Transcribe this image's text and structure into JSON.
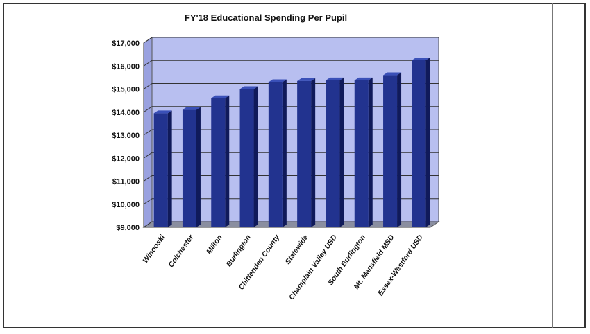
{
  "chart_data": {
    "type": "bar",
    "title": "FY'18 Educational Spending Per Pupil",
    "categories": [
      "Winooski",
      "Colchester",
      "Milton",
      "Burlington",
      "Chittenden County",
      "Statewide",
      "Champlain Valley USD",
      "South Burlington",
      "Mt. Mansfield MSD",
      "Essex-Westford USD"
    ],
    "series": [
      {
        "values": [
          13950,
          14100,
          14600,
          15000,
          15300,
          15350,
          15380,
          15380,
          15600,
          16250
        ]
      }
    ],
    "ylim": [
      9000,
      17000
    ],
    "yticks": [
      9000,
      10000,
      11000,
      12000,
      13000,
      14000,
      15000,
      16000,
      17000
    ],
    "ytick_labels": [
      "$9,000",
      "$10,000",
      "$11,000",
      "$12,000",
      "$13,000",
      "$14,000",
      "$15,000",
      "$16,000",
      "$17,000"
    ],
    "xlabel": "",
    "ylabel": "",
    "grid": true,
    "colors": {
      "bar": "#22338f",
      "bar_top": "#3a50b8",
      "bar_side": "#101a5a",
      "wall": "#b8bff0",
      "floor": "#8a8ea0"
    }
  }
}
